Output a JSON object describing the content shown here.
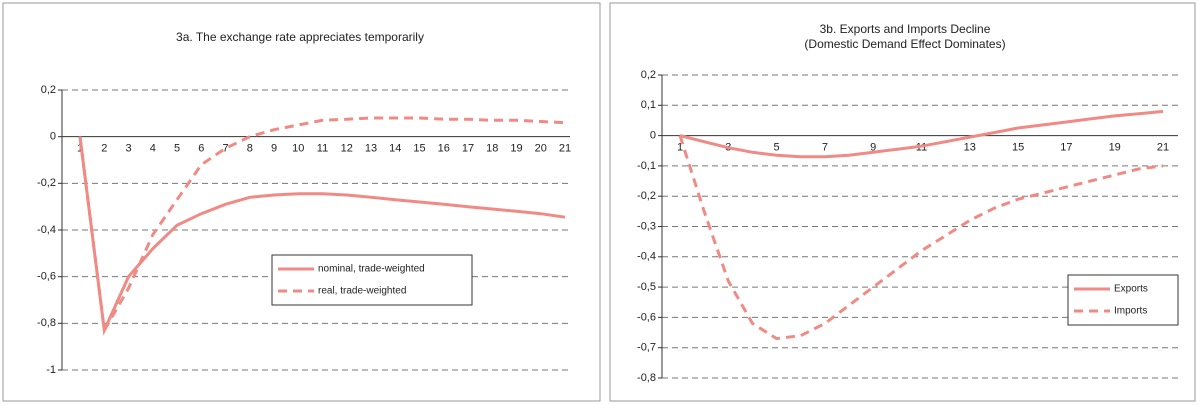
{
  "chart_data": [
    {
      "type": "line",
      "title": [
        "3a. The exchange rate appreciates temporarily"
      ],
      "categories": [
        "1",
        "2",
        "3",
        "4",
        "5",
        "6",
        "7",
        "8",
        "9",
        "10",
        "11",
        "12",
        "13",
        "14",
        "15",
        "16",
        "17",
        "18",
        "19",
        "20",
        "21"
      ],
      "series": [
        {
          "name": "nominal, trade-weighted",
          "color": "#f08a84",
          "linestyle": "solid",
          "values": [
            0,
            -0.83,
            -0.6,
            -0.48,
            -0.38,
            -0.33,
            -0.29,
            -0.26,
            -0.25,
            -0.245,
            -0.245,
            -0.25,
            -0.26,
            -0.27,
            -0.28,
            -0.29,
            -0.3,
            -0.31,
            -0.32,
            -0.33,
            -0.345
          ]
        },
        {
          "name": "real, trade-weighted",
          "color": "#f08a84",
          "linestyle": "dashed",
          "values": [
            0,
            -0.83,
            -0.65,
            -0.42,
            -0.27,
            -0.12,
            -0.05,
            0,
            0.03,
            0.05,
            0.07,
            0.075,
            0.08,
            0.08,
            0.08,
            0.075,
            0.075,
            0.07,
            0.07,
            0.065,
            0.06
          ]
        }
      ],
      "ylim": [
        -1,
        0.2
      ],
      "yticks": [
        {
          "value": 0.2,
          "label": "0,2"
        },
        0,
        {
          "value": -0.2,
          "label": "-0,2"
        },
        {
          "value": -0.4,
          "label": "-0,4"
        },
        {
          "value": -0.6,
          "label": "-0,6"
        },
        {
          "value": -0.8,
          "label": "-0,8"
        },
        -1
      ],
      "grid": true,
      "legend": "lower right"
    },
    {
      "type": "line",
      "title": [
        "3b. Exports and Imports Decline",
        "(Domestic Demand Effect Dominates)"
      ],
      "categories": [
        "1",
        null,
        "3",
        null,
        "5",
        null,
        "7",
        null,
        "9",
        null,
        "11",
        null,
        "13",
        null,
        "15",
        null,
        "17",
        null,
        "19",
        null,
        "21"
      ],
      "series": [
        {
          "name": "Exports",
          "color": "#f08a84",
          "linestyle": "solid",
          "values": [
            0,
            -0.02,
            -0.04,
            -0.055,
            -0.065,
            -0.07,
            -0.07,
            -0.065,
            -0.055,
            -0.045,
            -0.035,
            -0.02,
            -0.005,
            0.01,
            0.025,
            0.035,
            0.045,
            0.055,
            0.065,
            0.072,
            0.08
          ]
        },
        {
          "name": "Imports",
          "color": "#f08a84",
          "linestyle": "dashed",
          "values": [
            0,
            -0.25,
            -0.48,
            -0.62,
            -0.67,
            -0.66,
            -0.62,
            -0.56,
            -0.5,
            -0.44,
            -0.38,
            -0.33,
            -0.28,
            -0.24,
            -0.21,
            -0.19,
            -0.17,
            -0.15,
            -0.13,
            -0.11,
            -0.1
          ]
        }
      ],
      "ylim": [
        -0.8,
        0.2
      ],
      "yticks": [
        {
          "value": 0.2,
          "label": "0,2"
        },
        {
          "value": 0.1,
          "label": "0,1"
        },
        0,
        {
          "value": -0.1,
          "label": "-0,1"
        },
        {
          "value": -0.2,
          "label": "-0,2"
        },
        {
          "value": -0.3,
          "label": "-0,3"
        },
        {
          "value": -0.4,
          "label": "-0,4"
        },
        {
          "value": -0.5,
          "label": "-0,5"
        },
        {
          "value": -0.6,
          "label": "-0,6"
        },
        {
          "value": -0.7,
          "label": "-0,7"
        },
        {
          "value": -0.8,
          "label": "-0,8"
        }
      ],
      "grid": true,
      "legend": "right"
    }
  ]
}
